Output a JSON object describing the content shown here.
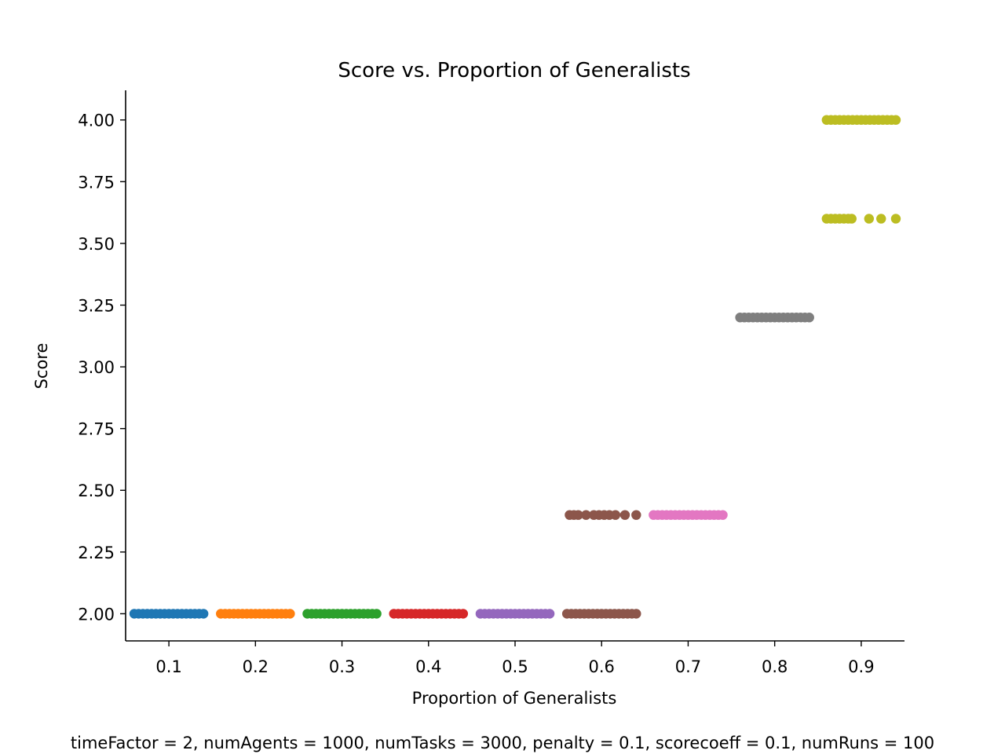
{
  "chart_data": {
    "type": "scatter",
    "title": "Score vs. Proportion of Generalists",
    "xlabel": "Proportion of Generalists",
    "ylabel": "Score",
    "xlim": [
      0.05,
      0.95
    ],
    "ylim": [
      1.89,
      4.12
    ],
    "xticks": [
      "0.1",
      "0.2",
      "0.3",
      "0.4",
      "0.5",
      "0.6",
      "0.7",
      "0.8",
      "0.9"
    ],
    "yticks": [
      "2.00",
      "2.25",
      "2.50",
      "2.75",
      "3.00",
      "3.25",
      "3.50",
      "3.75",
      "4.00"
    ],
    "grid": false,
    "legend": "none",
    "series": [
      {
        "color": "#1f77b4",
        "points": [
          [
            0.06,
            2.0
          ],
          [
            0.065,
            2.0
          ],
          [
            0.07,
            2.0
          ],
          [
            0.075,
            2.0
          ],
          [
            0.08,
            2.0
          ],
          [
            0.085,
            2.0
          ],
          [
            0.09,
            2.0
          ],
          [
            0.095,
            2.0
          ],
          [
            0.1,
            2.0
          ],
          [
            0.105,
            2.0
          ],
          [
            0.11,
            2.0
          ],
          [
            0.115,
            2.0
          ],
          [
            0.12,
            2.0
          ],
          [
            0.125,
            2.0
          ],
          [
            0.13,
            2.0
          ],
          [
            0.135,
            2.0
          ],
          [
            0.14,
            2.0
          ]
        ]
      },
      {
        "color": "#ff7f0e",
        "points": [
          [
            0.16,
            2.0
          ],
          [
            0.165,
            2.0
          ],
          [
            0.17,
            2.0
          ],
          [
            0.175,
            2.0
          ],
          [
            0.18,
            2.0
          ],
          [
            0.185,
            2.0
          ],
          [
            0.19,
            2.0
          ],
          [
            0.195,
            2.0
          ],
          [
            0.2,
            2.0
          ],
          [
            0.205,
            2.0
          ],
          [
            0.21,
            2.0
          ],
          [
            0.215,
            2.0
          ],
          [
            0.22,
            2.0
          ],
          [
            0.225,
            2.0
          ],
          [
            0.23,
            2.0
          ],
          [
            0.235,
            2.0
          ],
          [
            0.24,
            2.0
          ]
        ]
      },
      {
        "color": "#2ca02c",
        "points": [
          [
            0.26,
            2.0
          ],
          [
            0.265,
            2.0
          ],
          [
            0.27,
            2.0
          ],
          [
            0.275,
            2.0
          ],
          [
            0.28,
            2.0
          ],
          [
            0.285,
            2.0
          ],
          [
            0.29,
            2.0
          ],
          [
            0.295,
            2.0
          ],
          [
            0.3,
            2.0
          ],
          [
            0.305,
            2.0
          ],
          [
            0.31,
            2.0
          ],
          [
            0.315,
            2.0
          ],
          [
            0.32,
            2.0
          ],
          [
            0.325,
            2.0
          ],
          [
            0.33,
            2.0
          ],
          [
            0.335,
            2.0
          ],
          [
            0.34,
            2.0
          ]
        ]
      },
      {
        "color": "#d62728",
        "points": [
          [
            0.36,
            2.0
          ],
          [
            0.365,
            2.0
          ],
          [
            0.37,
            2.0
          ],
          [
            0.375,
            2.0
          ],
          [
            0.38,
            2.0
          ],
          [
            0.385,
            2.0
          ],
          [
            0.39,
            2.0
          ],
          [
            0.395,
            2.0
          ],
          [
            0.4,
            2.0
          ],
          [
            0.405,
            2.0
          ],
          [
            0.41,
            2.0
          ],
          [
            0.415,
            2.0
          ],
          [
            0.42,
            2.0
          ],
          [
            0.425,
            2.0
          ],
          [
            0.43,
            2.0
          ],
          [
            0.435,
            2.0
          ],
          [
            0.44,
            2.0
          ]
        ]
      },
      {
        "color": "#9467bd",
        "points": [
          [
            0.46,
            2.0
          ],
          [
            0.465,
            2.0
          ],
          [
            0.47,
            2.0
          ],
          [
            0.475,
            2.0
          ],
          [
            0.48,
            2.0
          ],
          [
            0.485,
            2.0
          ],
          [
            0.49,
            2.0
          ],
          [
            0.495,
            2.0
          ],
          [
            0.5,
            2.0
          ],
          [
            0.505,
            2.0
          ],
          [
            0.51,
            2.0
          ],
          [
            0.515,
            2.0
          ],
          [
            0.52,
            2.0
          ],
          [
            0.525,
            2.0
          ],
          [
            0.53,
            2.0
          ],
          [
            0.535,
            2.0
          ],
          [
            0.54,
            2.0
          ]
        ]
      },
      {
        "color": "#8c564b",
        "points": [
          [
            0.56,
            2.0
          ],
          [
            0.565,
            2.0
          ],
          [
            0.57,
            2.0
          ],
          [
            0.575,
            2.0
          ],
          [
            0.58,
            2.0
          ],
          [
            0.585,
            2.0
          ],
          [
            0.59,
            2.0
          ],
          [
            0.595,
            2.0
          ],
          [
            0.6,
            2.0
          ],
          [
            0.605,
            2.0
          ],
          [
            0.61,
            2.0
          ],
          [
            0.615,
            2.0
          ],
          [
            0.62,
            2.0
          ],
          [
            0.625,
            2.0
          ],
          [
            0.63,
            2.0
          ],
          [
            0.635,
            2.0
          ],
          [
            0.64,
            2.0
          ],
          [
            0.563,
            2.4
          ],
          [
            0.568,
            2.4
          ],
          [
            0.573,
            2.4
          ],
          [
            0.582,
            2.4
          ],
          [
            0.591,
            2.4
          ],
          [
            0.597,
            2.4
          ],
          [
            0.603,
            2.4
          ],
          [
            0.609,
            2.4
          ],
          [
            0.616,
            2.4
          ],
          [
            0.627,
            2.4
          ],
          [
            0.64,
            2.4
          ]
        ]
      },
      {
        "color": "#e377c2",
        "points": [
          [
            0.66,
            2.4
          ],
          [
            0.665,
            2.4
          ],
          [
            0.67,
            2.4
          ],
          [
            0.675,
            2.4
          ],
          [
            0.68,
            2.4
          ],
          [
            0.685,
            2.4
          ],
          [
            0.69,
            2.4
          ],
          [
            0.695,
            2.4
          ],
          [
            0.7,
            2.4
          ],
          [
            0.705,
            2.4
          ],
          [
            0.71,
            2.4
          ],
          [
            0.715,
            2.4
          ],
          [
            0.72,
            2.4
          ],
          [
            0.725,
            2.4
          ],
          [
            0.73,
            2.4
          ],
          [
            0.735,
            2.4
          ],
          [
            0.74,
            2.4
          ]
        ]
      },
      {
        "color": "#7f7f7f",
        "points": [
          [
            0.76,
            3.2
          ],
          [
            0.765,
            3.2
          ],
          [
            0.77,
            3.2
          ],
          [
            0.775,
            3.2
          ],
          [
            0.78,
            3.2
          ],
          [
            0.785,
            3.2
          ],
          [
            0.79,
            3.2
          ],
          [
            0.795,
            3.2
          ],
          [
            0.8,
            3.2
          ],
          [
            0.805,
            3.2
          ],
          [
            0.81,
            3.2
          ],
          [
            0.815,
            3.2
          ],
          [
            0.82,
            3.2
          ],
          [
            0.825,
            3.2
          ],
          [
            0.83,
            3.2
          ],
          [
            0.835,
            3.2
          ],
          [
            0.84,
            3.2
          ]
        ]
      },
      {
        "color": "#bcbd22",
        "points": [
          [
            0.86,
            4.0
          ],
          [
            0.865,
            4.0
          ],
          [
            0.87,
            4.0
          ],
          [
            0.875,
            4.0
          ],
          [
            0.88,
            4.0
          ],
          [
            0.885,
            4.0
          ],
          [
            0.89,
            4.0
          ],
          [
            0.895,
            4.0
          ],
          [
            0.9,
            4.0
          ],
          [
            0.905,
            4.0
          ],
          [
            0.91,
            4.0
          ],
          [
            0.915,
            4.0
          ],
          [
            0.92,
            4.0
          ],
          [
            0.925,
            4.0
          ],
          [
            0.93,
            4.0
          ],
          [
            0.935,
            4.0
          ],
          [
            0.94,
            4.0
          ],
          [
            0.86,
            3.6
          ],
          [
            0.865,
            3.6
          ],
          [
            0.87,
            3.6
          ],
          [
            0.875,
            3.6
          ],
          [
            0.88,
            3.6
          ],
          [
            0.885,
            3.6
          ],
          [
            0.889,
            3.6
          ],
          [
            0.909,
            3.6
          ],
          [
            0.923,
            3.6
          ],
          [
            0.94,
            3.6
          ]
        ]
      }
    ]
  },
  "caption": "timeFactor = 2, numAgents = 1000, numTasks = 3000, penalty = 0.1, scorecoeff = 0.1, numRuns = 100"
}
